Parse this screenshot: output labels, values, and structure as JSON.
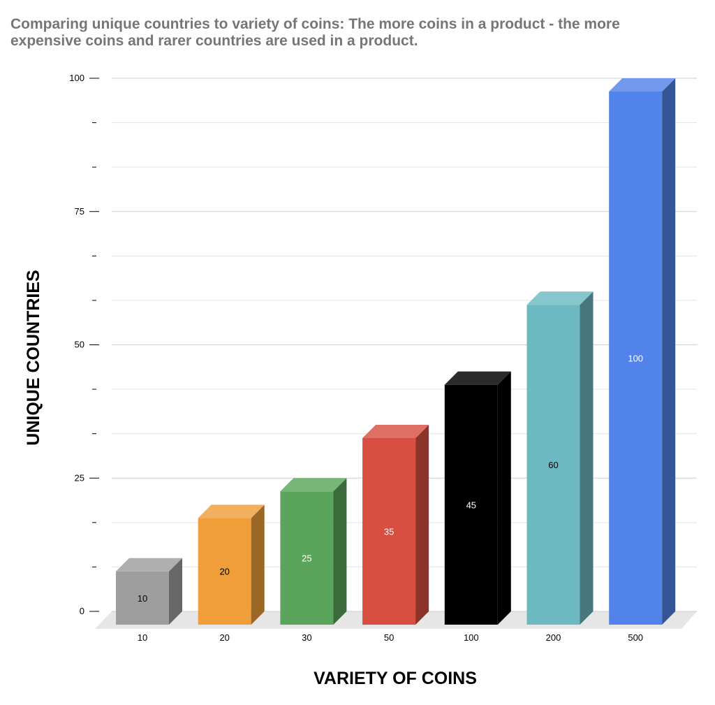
{
  "chart_data": {
    "type": "bar",
    "title": "Comparing unique countries to variety of coins: The more coins in a product - the more expensive coins and rarer countries are used in a product.",
    "xlabel": "VARIETY OF COINS",
    "ylabel": "UNIQUE COUNTRIES",
    "categories": [
      "10",
      "20",
      "30",
      "50",
      "100",
      "200",
      "500"
    ],
    "values": [
      10,
      20,
      25,
      35,
      45,
      60,
      100
    ],
    "ylim": [
      0,
      100
    ],
    "y_ticks": [
      "0",
      "25",
      "50",
      "75",
      "100"
    ],
    "grid": true,
    "three_d": true,
    "colors": [
      "#9e9e9e",
      "#ef9e3a",
      "#5aa55b",
      "#d84f41",
      "#000000",
      "#6cb9c2",
      "#5283ea"
    ],
    "label_colors": [
      "#000000",
      "#000000",
      "#ffffff",
      "#ffffff",
      "#ffffff",
      "#000000",
      "#ffffff"
    ]
  }
}
